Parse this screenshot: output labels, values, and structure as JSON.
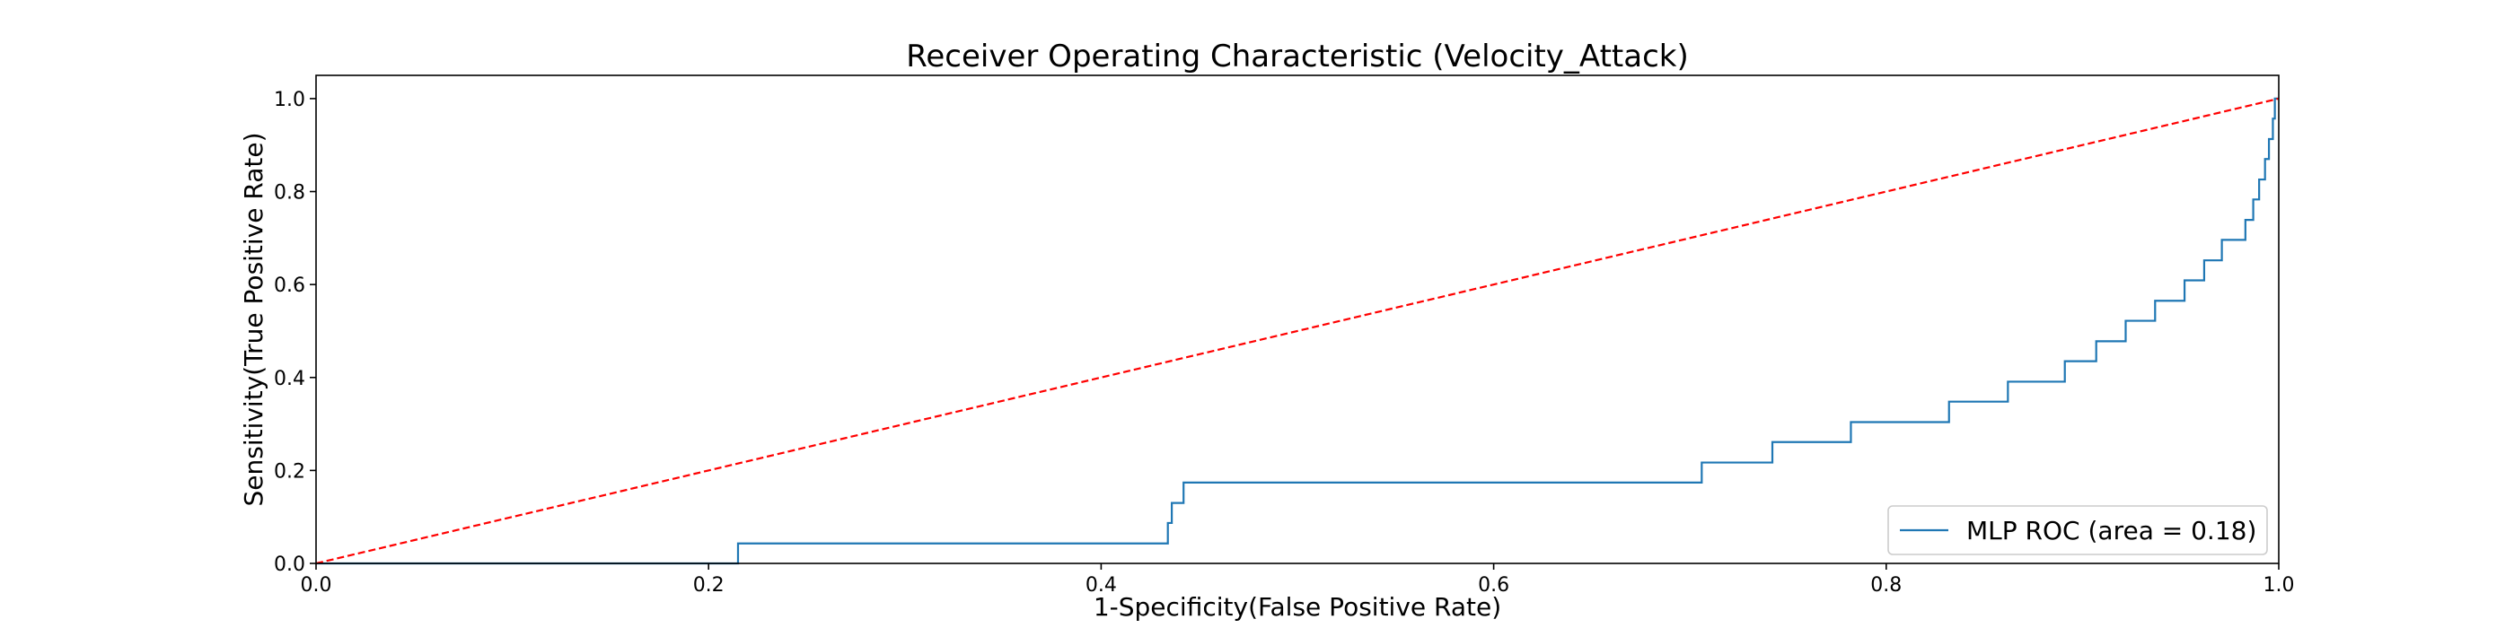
{
  "chart_data": {
    "type": "line",
    "title": "Receiver Operating Characteristic (Velocity_Attack)",
    "xlabel": "1-Specificity(False Positive Rate)",
    "ylabel": "Sensitivity(True Positive Rate)",
    "xlim": [
      0.0,
      1.0
    ],
    "ylim": [
      -0.0,
      1.05
    ],
    "xticks": [
      0.0,
      0.2,
      0.4,
      0.6,
      0.8,
      1.0
    ],
    "xtick_labels": [
      "0.0",
      "0.2",
      "0.4",
      "0.6",
      "0.8",
      "1.0"
    ],
    "yticks": [
      0.0,
      0.2,
      0.4,
      0.6,
      0.8,
      1.0
    ],
    "ytick_labels": [
      "0.0",
      "0.2",
      "0.4",
      "0.6",
      "0.8",
      "1.0"
    ],
    "grid": false,
    "legend_position": "bottom-right",
    "series": [
      {
        "name": "MLP ROC (area = 0.18)",
        "color": "#1f77b4",
        "style": "solid",
        "x": [
          0.0,
          0.215,
          0.215,
          0.434,
          0.434,
          0.436,
          0.436,
          0.442,
          0.442,
          0.706,
          0.706,
          0.742,
          0.742,
          0.782,
          0.782,
          0.832,
          0.832,
          0.862,
          0.862,
          0.891,
          0.891,
          0.907,
          0.907,
          0.922,
          0.922,
          0.937,
          0.937,
          0.952,
          0.952,
          0.962,
          0.962,
          0.971,
          0.971,
          0.983,
          0.983,
          0.987,
          0.987,
          0.99,
          0.99,
          0.993,
          0.993,
          0.995,
          0.995,
          0.997,
          0.997,
          0.998,
          0.998,
          1.0
        ],
        "y": [
          0.0,
          0.0,
          0.043,
          0.043,
          0.087,
          0.087,
          0.13,
          0.13,
          0.174,
          0.174,
          0.217,
          0.217,
          0.261,
          0.261,
          0.304,
          0.304,
          0.348,
          0.348,
          0.391,
          0.391,
          0.435,
          0.435,
          0.478,
          0.478,
          0.522,
          0.522,
          0.565,
          0.565,
          0.609,
          0.609,
          0.652,
          0.652,
          0.696,
          0.696,
          0.739,
          0.739,
          0.783,
          0.783,
          0.826,
          0.826,
          0.87,
          0.87,
          0.913,
          0.913,
          0.957,
          0.957,
          1.0,
          1.0
        ]
      },
      {
        "name": "",
        "color": "#ff0000",
        "style": "dashed",
        "x": [
          0.0,
          1.0
        ],
        "y": [
          0.0,
          1.0
        ]
      }
    ]
  }
}
